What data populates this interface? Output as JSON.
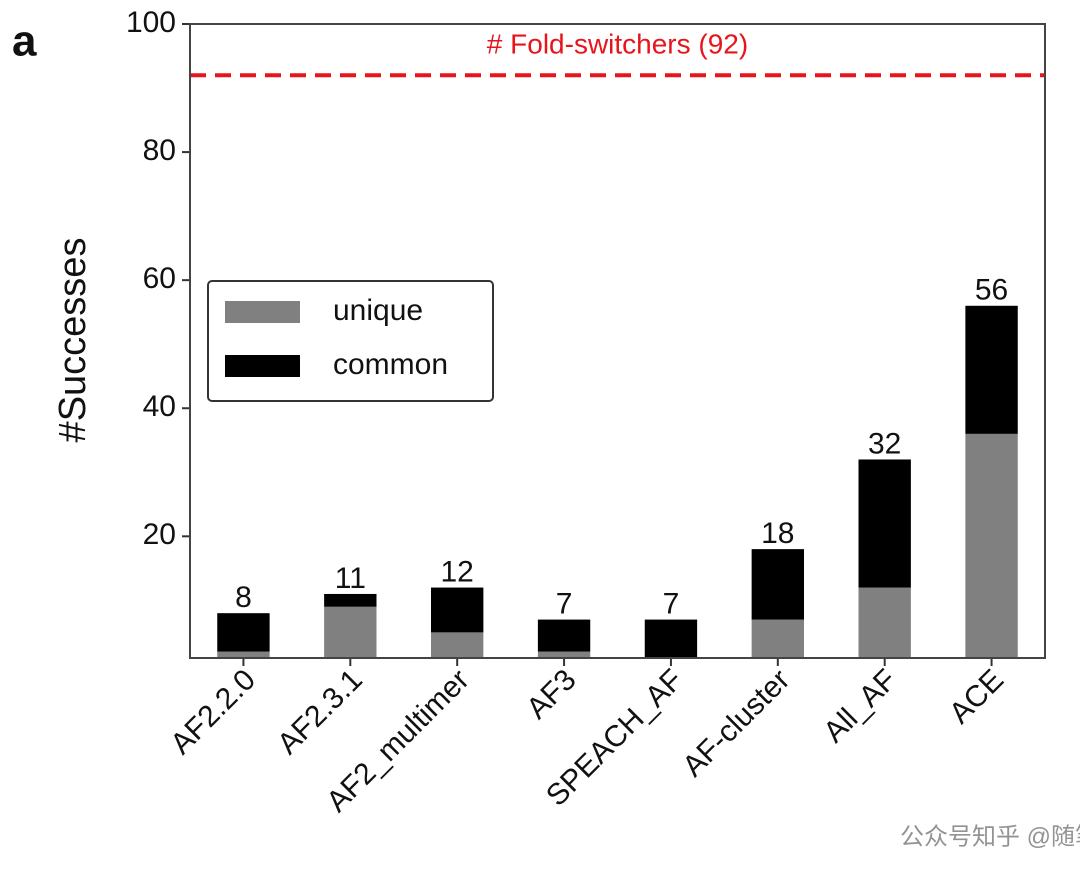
{
  "panel_label": "a",
  "watermark": "公众号知乎 @随笔",
  "chart_data": {
    "type": "stacked_bar",
    "ylabel": "#Successes",
    "categories": [
      "AF2.2.0",
      "AF2.3.1",
      "AF2_multimer",
      "AF3",
      "SPEACH_AF",
      "AF-cluster",
      "All_AF",
      "ACE"
    ],
    "series": [
      {
        "name": "unique",
        "color": "#808080",
        "values": [
          2,
          9,
          5,
          2,
          1,
          7,
          12,
          36
        ]
      },
      {
        "name": "common",
        "color": "#000000",
        "values": [
          6,
          2,
          7,
          5,
          6,
          11,
          20,
          20
        ]
      }
    ],
    "totals": [
      8,
      11,
      12,
      7,
      7,
      18,
      32,
      56
    ],
    "reference_line": {
      "value": 92,
      "label": "# Fold-switchers (92)",
      "color": "#e8141c"
    },
    "ylim": [
      1,
      100
    ],
    "yticks": [
      20,
      40,
      60,
      80,
      100
    ],
    "legend": "upper left"
  }
}
